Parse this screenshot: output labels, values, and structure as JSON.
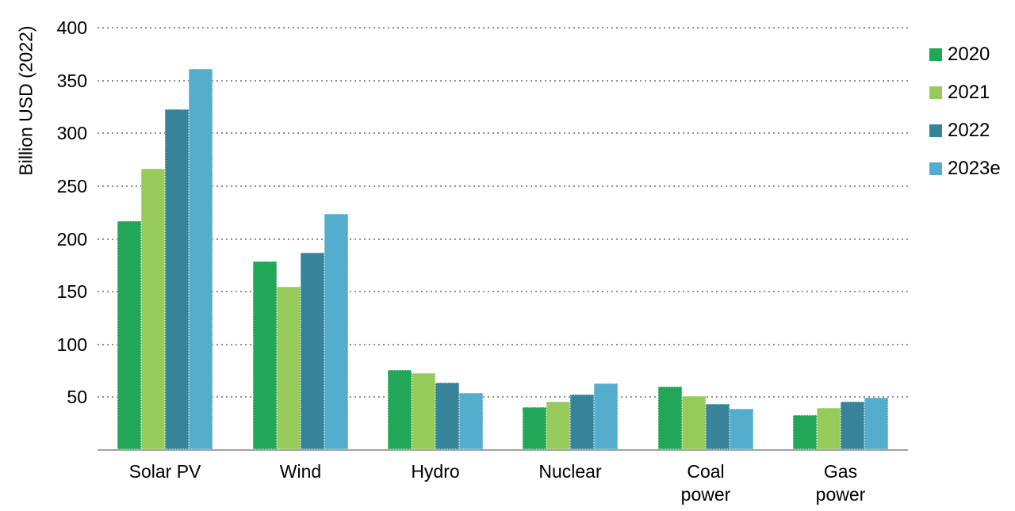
{
  "chart_data": {
    "type": "bar",
    "title": "",
    "ylabel": "Billion USD (2022)",
    "xlabel": "",
    "categories": [
      "Solar PV",
      "Wind",
      "Hydro",
      "Nuclear",
      "Coal power",
      "Gas power"
    ],
    "series": [
      {
        "name": "2020",
        "color": "#22a657",
        "values": [
          216,
          178,
          75,
          40,
          59,
          32
        ]
      },
      {
        "name": "2021",
        "color": "#96cb5b",
        "values": [
          266,
          154,
          72,
          45,
          50,
          39
        ]
      },
      {
        "name": "2022",
        "color": "#37849a",
        "values": [
          322,
          186,
          63,
          52,
          43,
          45
        ]
      },
      {
        "name": "2023e",
        "color": "#54adcc",
        "values": [
          360,
          223,
          53,
          62,
          38,
          49
        ]
      }
    ],
    "ylim": [
      0,
      400
    ],
    "yticks": [
      50,
      100,
      150,
      200,
      250,
      300,
      350,
      400
    ],
    "grid": "horizontal-dotted",
    "legend_position": "right",
    "colors": {
      "grid": "#8f8f8f",
      "axis": "#a3a3a3",
      "text": "#000000"
    }
  }
}
